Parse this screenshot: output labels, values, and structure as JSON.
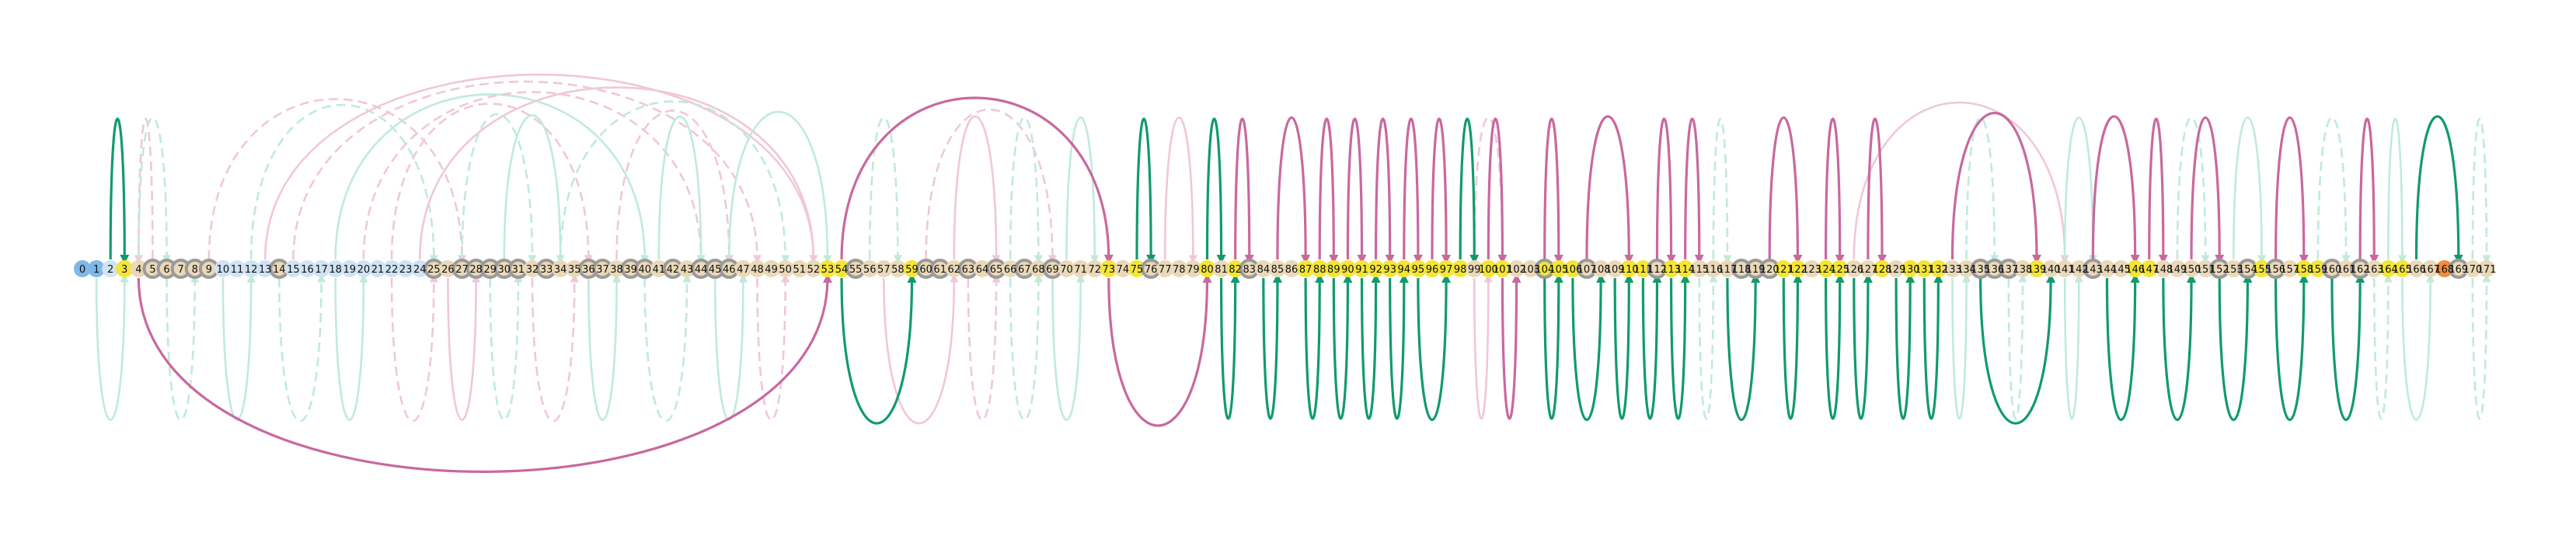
{
  "node_labels": [
    "0",
    "1",
    "2",
    "3",
    "4",
    "5",
    "6",
    "7",
    "8",
    "9",
    "10",
    "11",
    "12",
    "13",
    "14",
    "15",
    "16",
    "17",
    "18",
    "19",
    "20",
    "21",
    "22",
    "23",
    "24",
    "25",
    "26",
    "27",
    "28",
    "29",
    "30",
    "31",
    "32",
    "33",
    "34",
    "35",
    "36",
    "37",
    "38",
    "39",
    "40",
    "41",
    "42",
    "43",
    "44",
    "45",
    "46",
    "47",
    "48",
    "49",
    "50",
    "51",
    "52",
    "53",
    "54",
    "55",
    "56",
    "57",
    "58",
    "59",
    "60",
    "61",
    "62",
    "63",
    "64",
    "65",
    "66",
    "67",
    "68",
    "69",
    "70",
    "71",
    "72",
    "73",
    "74",
    "75",
    "76",
    "77",
    "78",
    "79",
    "80",
    "81",
    "82",
    "83",
    "84",
    "85",
    "86",
    "87",
    "88",
    "89",
    "90",
    "91",
    "92",
    "93",
    "94",
    "95",
    "96",
    "97",
    "98",
    "99",
    "100",
    "101",
    "102",
    "103",
    "104",
    "105",
    "106",
    "107",
    "108",
    "109",
    "110",
    "111",
    "112",
    "113",
    "114",
    "115",
    "116",
    "117",
    "118",
    "119",
    "120",
    "121",
    "122",
    "123",
    "124",
    "125",
    "126",
    "127",
    "128",
    "129",
    "130",
    "131",
    "132",
    "133",
    "134",
    "135",
    "136",
    "137",
    "138",
    "139",
    "140",
    "141",
    "142",
    "143",
    "144",
    "145",
    "146",
    "147",
    "148",
    "149",
    "150",
    "151",
    "152",
    "153",
    "154",
    "155",
    "156",
    "157",
    "158",
    "159",
    "160",
    "161",
    "162",
    "163",
    "164",
    "165",
    "166",
    "167",
    "168",
    "169",
    "170",
    "171"
  ],
  "node_kinds": {
    "start_blue": [
      0,
      1
    ],
    "highlight_yellow": [
      3,
      53,
      54,
      59,
      73,
      75,
      80,
      82,
      87,
      88,
      89,
      90,
      91,
      92,
      93,
      94,
      95,
      96,
      97,
      98,
      100,
      101,
      104,
      105,
      106,
      110,
      111,
      113,
      114,
      121,
      122,
      124,
      125,
      128,
      130,
      131,
      132,
      139,
      146,
      147,
      155,
      158,
      159,
      164,
      165,
      168
    ],
    "gray_ring": [
      5,
      6,
      7,
      8,
      9,
      14,
      25,
      27,
      28,
      29,
      30,
      31,
      33,
      36,
      37,
      39,
      40,
      42,
      44,
      45,
      46,
      55,
      60,
      61,
      63,
      65,
      67,
      69,
      76,
      83,
      104,
      107,
      112,
      118,
      119,
      120,
      135,
      136,
      137,
      143,
      152,
      154,
      156,
      160,
      162,
      169
    ],
    "orange": [
      168
    ],
    "light_blue": [
      2,
      10,
      11,
      12,
      13,
      15,
      16,
      17,
      18,
      19,
      20,
      21,
      22,
      23,
      24
    ]
  },
  "colors": {
    "green": "#119a6f",
    "pink": "#c9689f",
    "faint_green": "#bfeadc",
    "faint_pink": "#f0c7d9",
    "yellow": "#f4e537",
    "gray": "#9a9a9a",
    "blue": "#7fb8e6",
    "light_blue": "#cfe3f3",
    "orange": "#f08c3c",
    "tan": "#ead9b8"
  },
  "strong_edges_top": [
    {
      "from": 2,
      "to": 3,
      "color": "green"
    },
    {
      "from": 54,
      "to": 73,
      "color": "pink"
    },
    {
      "from": 75,
      "to": 76,
      "color": "green"
    },
    {
      "from": 80,
      "to": 81,
      "color": "green"
    },
    {
      "from": 82,
      "to": 83,
      "color": "pink"
    },
    {
      "from": 85,
      "to": 87,
      "color": "pink"
    },
    {
      "from": 88,
      "to": 89,
      "color": "pink"
    },
    {
      "from": 90,
      "to": 91,
      "color": "pink"
    },
    {
      "from": 92,
      "to": 93,
      "color": "pink"
    },
    {
      "from": 94,
      "to": 95,
      "color": "pink"
    },
    {
      "from": 96,
      "to": 97,
      "color": "pink"
    },
    {
      "from": 98,
      "to": 99,
      "color": "green"
    },
    {
      "from": 100,
      "to": 101,
      "color": "pink"
    },
    {
      "from": 104,
      "to": 105,
      "color": "pink"
    },
    {
      "from": 107,
      "to": 110,
      "color": "pink"
    },
    {
      "from": 112,
      "to": 113,
      "color": "pink"
    },
    {
      "from": 114,
      "to": 115,
      "color": "pink"
    },
    {
      "from": 120,
      "to": 122,
      "color": "pink"
    },
    {
      "from": 124,
      "to": 125,
      "color": "pink"
    },
    {
      "from": 127,
      "to": 128,
      "color": "pink"
    },
    {
      "from": 133,
      "to": 139,
      "color": "pink"
    },
    {
      "from": 143,
      "to": 146,
      "color": "pink"
    },
    {
      "from": 147,
      "to": 148,
      "color": "pink"
    },
    {
      "from": 150,
      "to": 152,
      "color": "pink"
    },
    {
      "from": 156,
      "to": 158,
      "color": "pink"
    },
    {
      "from": 162,
      "to": 163,
      "color": "pink"
    },
    {
      "from": 166,
      "to": 169,
      "color": "green"
    }
  ],
  "strong_edges_bottom": [
    {
      "from": 4,
      "to": 53,
      "color": "pink"
    },
    {
      "from": 54,
      "to": 59,
      "color": "green"
    },
    {
      "from": 73,
      "to": 80,
      "color": "pink"
    },
    {
      "from": 81,
      "to": 82,
      "color": "green"
    },
    {
      "from": 84,
      "to": 85,
      "color": "green"
    },
    {
      "from": 87,
      "to": 88,
      "color": "green"
    },
    {
      "from": 89,
      "to": 90,
      "color": "green"
    },
    {
      "from": 91,
      "to": 92,
      "color": "green"
    },
    {
      "from": 93,
      "to": 94,
      "color": "green"
    },
    {
      "from": 95,
      "to": 97,
      "color": "green"
    },
    {
      "from": 101,
      "to": 102,
      "color": "pink"
    },
    {
      "from": 104,
      "to": 105,
      "color": "green"
    },
    {
      "from": 106,
      "to": 108,
      "color": "green"
    },
    {
      "from": 109,
      "to": 110,
      "color": "green"
    },
    {
      "from": 111,
      "to": 112,
      "color": "green"
    },
    {
      "from": 113,
      "to": 114,
      "color": "green"
    },
    {
      "from": 117,
      "to": 119,
      "color": "green"
    },
    {
      "from": 121,
      "to": 122,
      "color": "green"
    },
    {
      "from": 124,
      "to": 125,
      "color": "green"
    },
    {
      "from": 126,
      "to": 127,
      "color": "green"
    },
    {
      "from": 129,
      "to": 130,
      "color": "green"
    },
    {
      "from": 131,
      "to": 132,
      "color": "green"
    },
    {
      "from": 135,
      "to": 140,
      "color": "green"
    },
    {
      "from": 144,
      "to": 146,
      "color": "green"
    },
    {
      "from": 148,
      "to": 150,
      "color": "green"
    },
    {
      "from": 152,
      "to": 154,
      "color": "green"
    },
    {
      "from": 156,
      "to": 158,
      "color": "green"
    },
    {
      "from": 160,
      "to": 162,
      "color": "green"
    }
  ],
  "faint_edges_top": [
    {
      "from": 5,
      "to": 4,
      "color": "faint_pink",
      "dashed": true
    },
    {
      "from": 4,
      "to": 6,
      "color": "faint_green",
      "dashed": true
    },
    {
      "from": 9,
      "to": 27,
      "color": "faint_pink",
      "dashed": true
    },
    {
      "from": 12,
      "to": 25,
      "color": "faint_green",
      "dashed": true
    },
    {
      "from": 13,
      "to": 52,
      "color": "faint_pink",
      "dashed": false
    },
    {
      "from": 15,
      "to": 48,
      "color": "faint_pink",
      "dashed": true
    },
    {
      "from": 18,
      "to": 40,
      "color": "faint_green",
      "dashed": false
    },
    {
      "from": 20,
      "to": 44,
      "color": "faint_pink",
      "dashed": true
    },
    {
      "from": 22,
      "to": 36,
      "color": "faint_pink",
      "dashed": true
    },
    {
      "from": 24,
      "to": 52,
      "color": "faint_pink",
      "dashed": false
    },
    {
      "from": 27,
      "to": 32,
      "color": "faint_green",
      "dashed": true
    },
    {
      "from": 30,
      "to": 34,
      "color": "faint_green",
      "dashed": false
    },
    {
      "from": 34,
      "to": 50,
      "color": "faint_green",
      "dashed": true
    },
    {
      "from": 38,
      "to": 46,
      "color": "faint_pink",
      "dashed": true
    },
    {
      "from": 41,
      "to": 44,
      "color": "faint_green",
      "dashed": false
    },
    {
      "from": 46,
      "to": 53,
      "color": "faint_green",
      "dashed": false
    },
    {
      "from": 56,
      "to": 58,
      "color": "faint_green",
      "dashed": true
    },
    {
      "from": 60,
      "to": 69,
      "color": "faint_pink",
      "dashed": true
    },
    {
      "from": 62,
      "to": 65,
      "color": "faint_pink",
      "dashed": false
    },
    {
      "from": 66,
      "to": 68,
      "color": "faint_green",
      "dashed": true
    },
    {
      "from": 70,
      "to": 72,
      "color": "faint_green",
      "dashed": false
    },
    {
      "from": 77,
      "to": 79,
      "color": "faint_pink",
      "dashed": false
    },
    {
      "from": 99,
      "to": 101,
      "color": "faint_pink",
      "dashed": true
    },
    {
      "from": 116,
      "to": 117,
      "color": "faint_green",
      "dashed": true
    },
    {
      "from": 126,
      "to": 141,
      "color": "faint_pink",
      "dashed": false
    },
    {
      "from": 134,
      "to": 136,
      "color": "faint_green",
      "dashed": true
    },
    {
      "from": 141,
      "to": 143,
      "color": "faint_green",
      "dashed": false
    },
    {
      "from": 149,
      "to": 151,
      "color": "faint_green",
      "dashed": true
    },
    {
      "from": 153,
      "to": 155,
      "color": "faint_green",
      "dashed": false
    },
    {
      "from": 159,
      "to": 161,
      "color": "faint_green",
      "dashed": true
    },
    {
      "from": 164,
      "to": 165,
      "color": "faint_green",
      "dashed": false
    },
    {
      "from": 170,
      "to": 171,
      "color": "faint_green",
      "dashed": true
    }
  ],
  "faint_edges_bottom": [
    {
      "from": 1,
      "to": 3,
      "color": "faint_green",
      "dashed": false
    },
    {
      "from": 6,
      "to": 8,
      "color": "faint_green",
      "dashed": true
    },
    {
      "from": 10,
      "to": 12,
      "color": "faint_green",
      "dashed": false
    },
    {
      "from": 14,
      "to": 17,
      "color": "faint_green",
      "dashed": true
    },
    {
      "from": 18,
      "to": 20,
      "color": "faint_green",
      "dashed": false
    },
    {
      "from": 22,
      "to": 25,
      "color": "faint_pink",
      "dashed": true
    },
    {
      "from": 26,
      "to": 28,
      "color": "faint_pink",
      "dashed": false
    },
    {
      "from": 29,
      "to": 31,
      "color": "faint_green",
      "dashed": true
    },
    {
      "from": 32,
      "to": 35,
      "color": "faint_pink",
      "dashed": true
    },
    {
      "from": 36,
      "to": 38,
      "color": "faint_green",
      "dashed": false
    },
    {
      "from": 40,
      "to": 43,
      "color": "faint_green",
      "dashed": true
    },
    {
      "from": 45,
      "to": 47,
      "color": "faint_green",
      "dashed": false
    },
    {
      "from": 48,
      "to": 50,
      "color": "faint_pink",
      "dashed": true
    },
    {
      "from": 57,
      "to": 62,
      "color": "faint_pink",
      "dashed": false
    },
    {
      "from": 63,
      "to": 65,
      "color": "faint_pink",
      "dashed": true
    },
    {
      "from": 66,
      "to": 68,
      "color": "faint_green",
      "dashed": true
    },
    {
      "from": 69,
      "to": 71,
      "color": "faint_green",
      "dashed": false
    },
    {
      "from": 99,
      "to": 100,
      "color": "faint_pink",
      "dashed": false
    },
    {
      "from": 115,
      "to": 116,
      "color": "faint_green",
      "dashed": true
    },
    {
      "from": 133,
      "to": 134,
      "color": "faint_green",
      "dashed": false
    },
    {
      "from": 137,
      "to": 138,
      "color": "faint_green",
      "dashed": true
    },
    {
      "from": 141,
      "to": 142,
      "color": "faint_green",
      "dashed": false
    },
    {
      "from": 163,
      "to": 164,
      "color": "faint_green",
      "dashed": true
    },
    {
      "from": 165,
      "to": 167,
      "color": "faint_green",
      "dashed": false
    },
    {
      "from": 170,
      "to": 171,
      "color": "faint_green",
      "dashed": true
    }
  ]
}
